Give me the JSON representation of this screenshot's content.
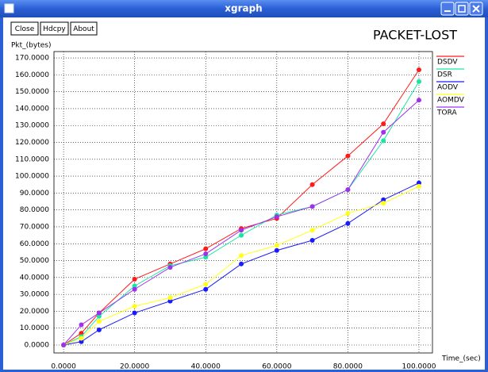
{
  "window": {
    "title": "xgraph",
    "buttons": [
      "Close",
      "Hdcpy",
      "About"
    ]
  },
  "chart_data": {
    "type": "line",
    "title": "PACKET-LOST",
    "ylabel": "Pkt_(bytes)",
    "xlabel": "Time_(sec)",
    "x": [
      0,
      5,
      10,
      20,
      30,
      40,
      50,
      60,
      70,
      80,
      90,
      100
    ],
    "series": [
      {
        "name": "DSDV",
        "color": "#ff1a1a",
        "values": [
          0,
          7,
          19,
          39,
          48,
          57,
          69,
          75,
          95,
          112,
          131,
          163
        ]
      },
      {
        "name": "DSR",
        "color": "#1ae6a0",
        "values": [
          0,
          5,
          17,
          35,
          47,
          52,
          65,
          77,
          82,
          92,
          121,
          156
        ]
      },
      {
        "name": "AODV",
        "color": "#1a1aff",
        "values": [
          0,
          2,
          9,
          19,
          26,
          33,
          48,
          56,
          62,
          72,
          86,
          96
        ]
      },
      {
        "name": "AOMDV",
        "color": "#ffff1a",
        "values": [
          0,
          4,
          14,
          23,
          28,
          36,
          53,
          59,
          68,
          78,
          84,
          94
        ]
      },
      {
        "name": "TORA",
        "color": "#a030f0",
        "values": [
          0,
          12,
          19,
          33,
          46,
          54,
          68,
          76,
          82,
          92,
          126,
          145
        ]
      }
    ],
    "xlim": [
      -2.7,
      103.8
    ],
    "ylim": [
      -4.7,
      173.8
    ],
    "xticks": [
      {
        "value": 0,
        "label": "0.0000"
      },
      {
        "value": 20,
        "label": "20.0000"
      },
      {
        "value": 40,
        "label": "40.0000"
      },
      {
        "value": 60,
        "label": "60.0000"
      },
      {
        "value": 80,
        "label": "80.0000"
      },
      {
        "value": 100,
        "label": "100.0000"
      }
    ],
    "yticks": [
      {
        "value": 0,
        "label": "0.0000"
      },
      {
        "value": 10,
        "label": "10.0000"
      },
      {
        "value": 20,
        "label": "20.0000"
      },
      {
        "value": 30,
        "label": "30.0000"
      },
      {
        "value": 40,
        "label": "40.0000"
      },
      {
        "value": 50,
        "label": "50.0000"
      },
      {
        "value": 60,
        "label": "60.0000"
      },
      {
        "value": 70,
        "label": "70.0000"
      },
      {
        "value": 80,
        "label": "80.0000"
      },
      {
        "value": 90,
        "label": "90.0000"
      },
      {
        "value": 100,
        "label": "100.0000"
      },
      {
        "value": 110,
        "label": "110.0000"
      },
      {
        "value": 120,
        "label": "120.0000"
      },
      {
        "value": 130,
        "label": "130.0000"
      },
      {
        "value": 140,
        "label": "140.0000"
      },
      {
        "value": 150,
        "label": "150.0000"
      },
      {
        "value": 160,
        "label": "160.0000"
      },
      {
        "value": 170,
        "label": "170.0000"
      }
    ],
    "grid": true,
    "legend": "right"
  }
}
